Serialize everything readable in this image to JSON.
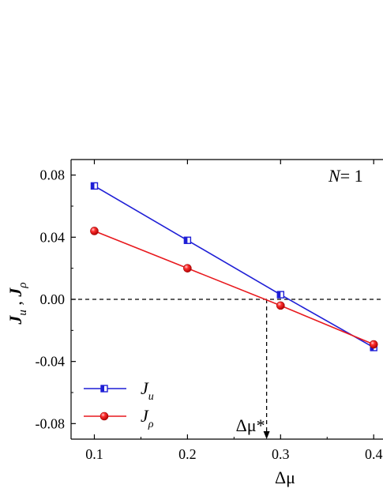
{
  "chart_data": {
    "type": "line",
    "title": "",
    "annotation": {
      "label_main": "N",
      "label_rest": "= 1"
    },
    "xlabel": "Δμ",
    "ylabel": {
      "left": "J",
      "left_sub": "u",
      "sep": " , ",
      "right": "J",
      "right_sub": "ρ"
    },
    "xlim": [
      0.075,
      0.41
    ],
    "ylim": [
      -0.09,
      0.09
    ],
    "x_ticks": [
      {
        "value": 0.1,
        "label": "0.1"
      },
      {
        "value": 0.2,
        "label": "0.2"
      },
      {
        "value": 0.3,
        "label": "0.3"
      },
      {
        "value": 0.4,
        "label": "0.4"
      }
    ],
    "y_ticks": [
      {
        "value": 0.08,
        "label": "0.08"
      },
      {
        "value": 0.04,
        "label": "0.04"
      },
      {
        "value": 0.0,
        "label": "0.00"
      },
      {
        "value": -0.04,
        "label": "-0.04"
      },
      {
        "value": -0.08,
        "label": "-0.08"
      }
    ],
    "x": [
      0.1,
      0.2,
      0.3,
      0.4
    ],
    "series": [
      {
        "name": "J_u",
        "label_main": "J",
        "label_sub": "u",
        "color": "#1f1fd6",
        "marker": "half-filled-square",
        "values": [
          0.073,
          0.038,
          0.003,
          -0.031
        ]
      },
      {
        "name": "J_rho",
        "label_main": "J",
        "label_sub": "ρ",
        "color": "#e8191e",
        "marker": "sphere",
        "values": [
          0.044,
          0.02,
          -0.004,
          -0.029
        ]
      }
    ],
    "reference_line": {
      "y": 0.0,
      "style": "dashed"
    },
    "critical_point": {
      "x": 0.285,
      "label": "Δμ*"
    },
    "legend_position": "bottom-left",
    "grid": false
  }
}
